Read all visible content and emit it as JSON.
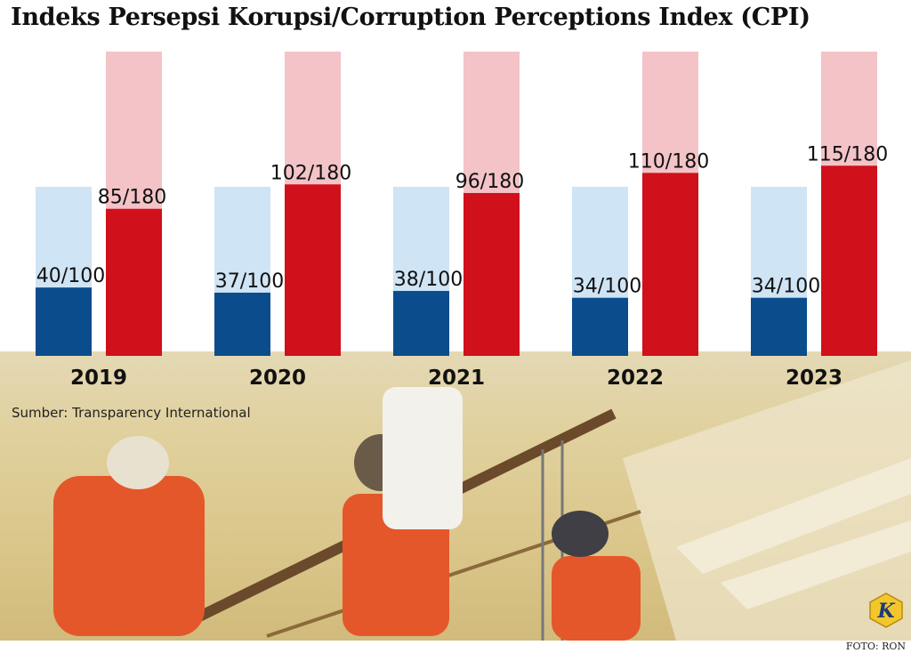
{
  "title": "Indeks Persepsi Korupsi/Corruption Perceptions Index (CPI)",
  "source": "Sumber: Transparency International",
  "photo_credit": "FOTO: RON",
  "logo_letter": "K",
  "colors": {
    "score_max": "#cfe4f4",
    "score": "#0b4d8c",
    "rank_max": "#f3c3c7",
    "rank": "#d0101a"
  },
  "chart_data": {
    "type": "bar",
    "categories": [
      "2019",
      "2020",
      "2021",
      "2022",
      "2023"
    ],
    "series": [
      {
        "values": [
          40,
          37,
          38,
          34,
          34
        ],
        "max": 100,
        "labels": [
          "40/100",
          "37/100",
          "38/100",
          "34/100",
          "34/100"
        ]
      },
      {
        "values": [
          85,
          102,
          96,
          110,
          115
        ],
        "max": 180,
        "labels": [
          "85/180",
          "102/180",
          "96/180",
          "110/180",
          "115/180"
        ]
      }
    ],
    "title": "Indeks Persepsi Korupsi/Corruption Perceptions Index (CPI)",
    "xlabel": "",
    "ylabel": "",
    "grid": false
  }
}
